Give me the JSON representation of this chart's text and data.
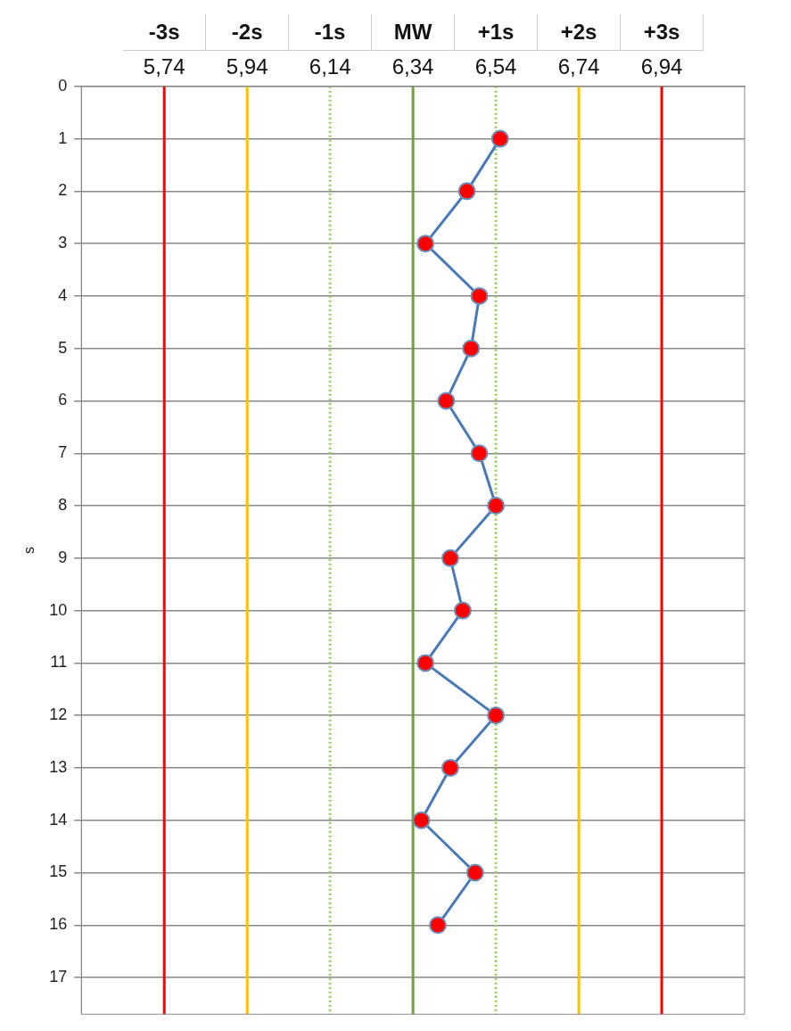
{
  "chart_data": {
    "type": "line",
    "ylabel": "s",
    "x": [
      6.55,
      6.47,
      6.37,
      6.5,
      6.48,
      6.42,
      6.5,
      6.54,
      6.43,
      6.46,
      6.37,
      6.54,
      6.43,
      6.36,
      6.49,
      6.4
    ],
    "series": [
      {
        "color": "#4a7ab5",
        "values": [
          1,
          2,
          3,
          4,
          5,
          6,
          7,
          8,
          9,
          10,
          11,
          12,
          13,
          14,
          15,
          16
        ]
      }
    ],
    "marker": "circle",
    "xlim": [
      5.54,
      7.14
    ],
    "xticks": [
      {
        "value": 5.74,
        "label": "5,74"
      },
      {
        "value": 5.94,
        "label": "5,94"
      },
      {
        "value": 6.14,
        "label": "6,14"
      },
      {
        "value": 6.34,
        "label": "6,34"
      },
      {
        "value": 6.54,
        "label": "6,54"
      },
      {
        "value": 6.74,
        "label": "6,74"
      },
      {
        "value": 6.94,
        "label": "6,94"
      }
    ],
    "ylim": [
      17.7,
      0
    ],
    "yticks": [
      0,
      1,
      2,
      3,
      4,
      5,
      6,
      7,
      8,
      9,
      10,
      11,
      12,
      13,
      14,
      15,
      16,
      17
    ],
    "grid": "y",
    "legend": false,
    "ref_lines": [
      {
        "axis": "x",
        "value": 5.74,
        "label": "-3s",
        "color": "#ff0000",
        "line_style": "solid"
      },
      {
        "axis": "x",
        "value": 5.94,
        "label": "-2s",
        "color": "#ffc000",
        "line_style": "solid"
      },
      {
        "axis": "x",
        "value": 6.14,
        "label": "-1s",
        "color": "#92d050",
        "line_style": "dotted"
      },
      {
        "axis": "x",
        "value": 6.34,
        "label": "MW",
        "color": "#70a040",
        "line_style": "solid"
      },
      {
        "axis": "x",
        "value": 6.54,
        "label": "+1s",
        "color": "#92d050",
        "line_style": "dotted"
      },
      {
        "axis": "x",
        "value": 6.74,
        "label": "+2s",
        "color": "#ffc000",
        "line_style": "solid"
      },
      {
        "axis": "x",
        "value": 6.94,
        "label": "+3s",
        "color": "#ff0000",
        "line_style": "solid"
      }
    ]
  }
}
